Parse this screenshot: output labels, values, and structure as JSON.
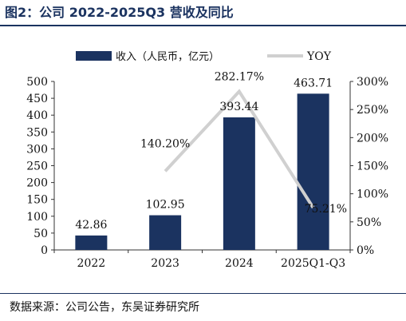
{
  "figure": {
    "title": "图2：公司 2022-2025Q3 营收及同比",
    "source": "数据来源：公司公告，东吴证券研究所"
  },
  "chart_data": {
    "type": "bar",
    "categories": [
      "2022",
      "2023",
      "2024",
      "2025Q1-Q3"
    ],
    "series": [
      {
        "name": "收入（人民币，亿元）",
        "type": "bar",
        "axis": "left",
        "values": [
          42.86,
          102.95,
          393.44,
          463.71
        ],
        "labels": [
          "42.86",
          "102.95",
          "393.44",
          "463.71"
        ],
        "color": "#1b3360"
      },
      {
        "name": "YOY",
        "type": "line",
        "axis": "right",
        "values": [
          null,
          140.2,
          282.17,
          75.21
        ],
        "labels": [
          "",
          "140.20%",
          "282.17%",
          "75.21%"
        ],
        "color": "#d0d0d0"
      }
    ],
    "left_axis": {
      "ylim": [
        0,
        500
      ],
      "ticks": [
        "0",
        "50",
        "100",
        "150",
        "200",
        "250",
        "300",
        "350",
        "400",
        "450",
        "500"
      ]
    },
    "right_axis": {
      "ylim": [
        0,
        300
      ],
      "ticks": [
        "0%",
        "50%",
        "100%",
        "150%",
        "200%",
        "250%",
        "300%"
      ]
    },
    "legend": "top-center",
    "grid": false
  }
}
